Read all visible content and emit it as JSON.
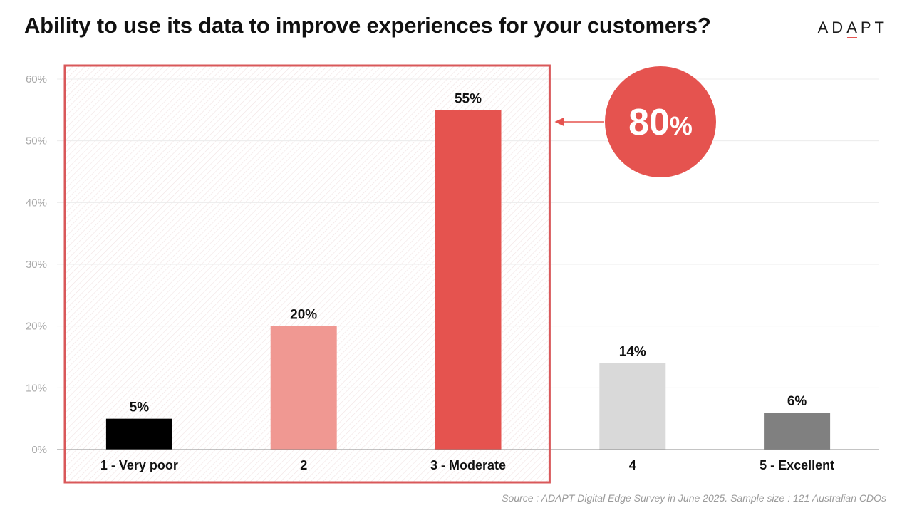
{
  "header": {
    "title": "Ability to use its data to improve experiences for your customers?",
    "logo": {
      "pre": "AD",
      "accent": "A",
      "post": "PT"
    }
  },
  "callout": {
    "number": "80",
    "unit": "%"
  },
  "source": "Source : ADAPT Digital Edge Survey in June 2025. Sample size : 121 Australian CDOs",
  "colors": {
    "accent": "#e5534f",
    "highlight_border": "#d9585a",
    "grid": "#ececec",
    "axis": "#8a8a8a",
    "tick_text": "#a9a9a9"
  },
  "chart_data": {
    "type": "bar",
    "title": "Ability to use its data to improve experiences for your customers?",
    "xlabel": "",
    "ylabel": "",
    "categories": [
      "1 - Very poor",
      "2",
      "3 - Moderate",
      "4",
      "5 - Excellent"
    ],
    "values": [
      5,
      20,
      55,
      14,
      6
    ],
    "value_labels": [
      "5%",
      "20%",
      "55%",
      "14%",
      "6%"
    ],
    "bar_colors": [
      "#000000",
      "#f09892",
      "#e5534f",
      "#d9d9d9",
      "#808080"
    ],
    "ylim": [
      0,
      60
    ],
    "yticks": [
      0,
      10,
      20,
      30,
      40,
      50,
      60
    ],
    "ytick_labels": [
      "0%",
      "10%",
      "20%",
      "30%",
      "40%",
      "50%",
      "60%"
    ],
    "grid": true,
    "legend": "none",
    "highlight": {
      "categories": [
        "1 - Very poor",
        "2",
        "3 - Moderate"
      ],
      "total_label": "80%"
    }
  }
}
